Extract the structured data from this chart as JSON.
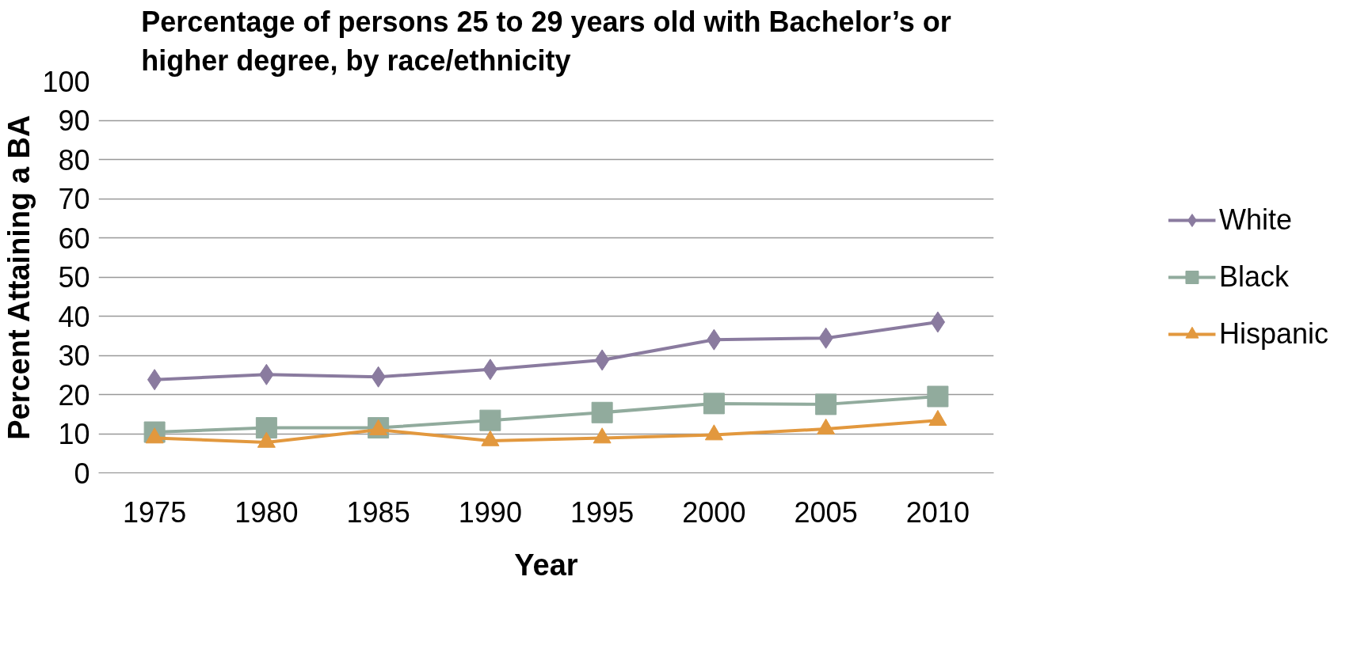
{
  "chart_data": {
    "type": "line",
    "title": "Percentage of persons 25 to 29 years old with Bachelor’s or\nhigher degree, by race/ethnicity",
    "xlabel": "Year",
    "ylabel": "Percent Attaining a BA",
    "categories": [
      "1975",
      "1980",
      "1985",
      "1990",
      "1995",
      "2000",
      "2005",
      "2010"
    ],
    "ylim": [
      0,
      100
    ],
    "yticks": [
      0,
      10,
      20,
      30,
      40,
      50,
      60,
      70,
      80,
      90,
      100
    ],
    "grid": "y",
    "legend": "right",
    "line_style": "solid",
    "series": [
      {
        "name": "White",
        "color": "#8a7b9f",
        "marker": "diamond",
        "values": [
          23.8,
          25.1,
          24.5,
          26.4,
          28.8,
          34.0,
          34.4,
          38.5
        ]
      },
      {
        "name": "Black",
        "color": "#91ab9d",
        "marker": "square",
        "values": [
          10.4,
          11.5,
          11.5,
          13.4,
          15.4,
          17.7,
          17.5,
          19.5
        ]
      },
      {
        "name": "Hispanic",
        "color": "#e2983e",
        "marker": "triangle",
        "values": [
          8.9,
          7.8,
          11.0,
          8.2,
          8.9,
          9.7,
          11.2,
          13.4
        ]
      }
    ]
  }
}
